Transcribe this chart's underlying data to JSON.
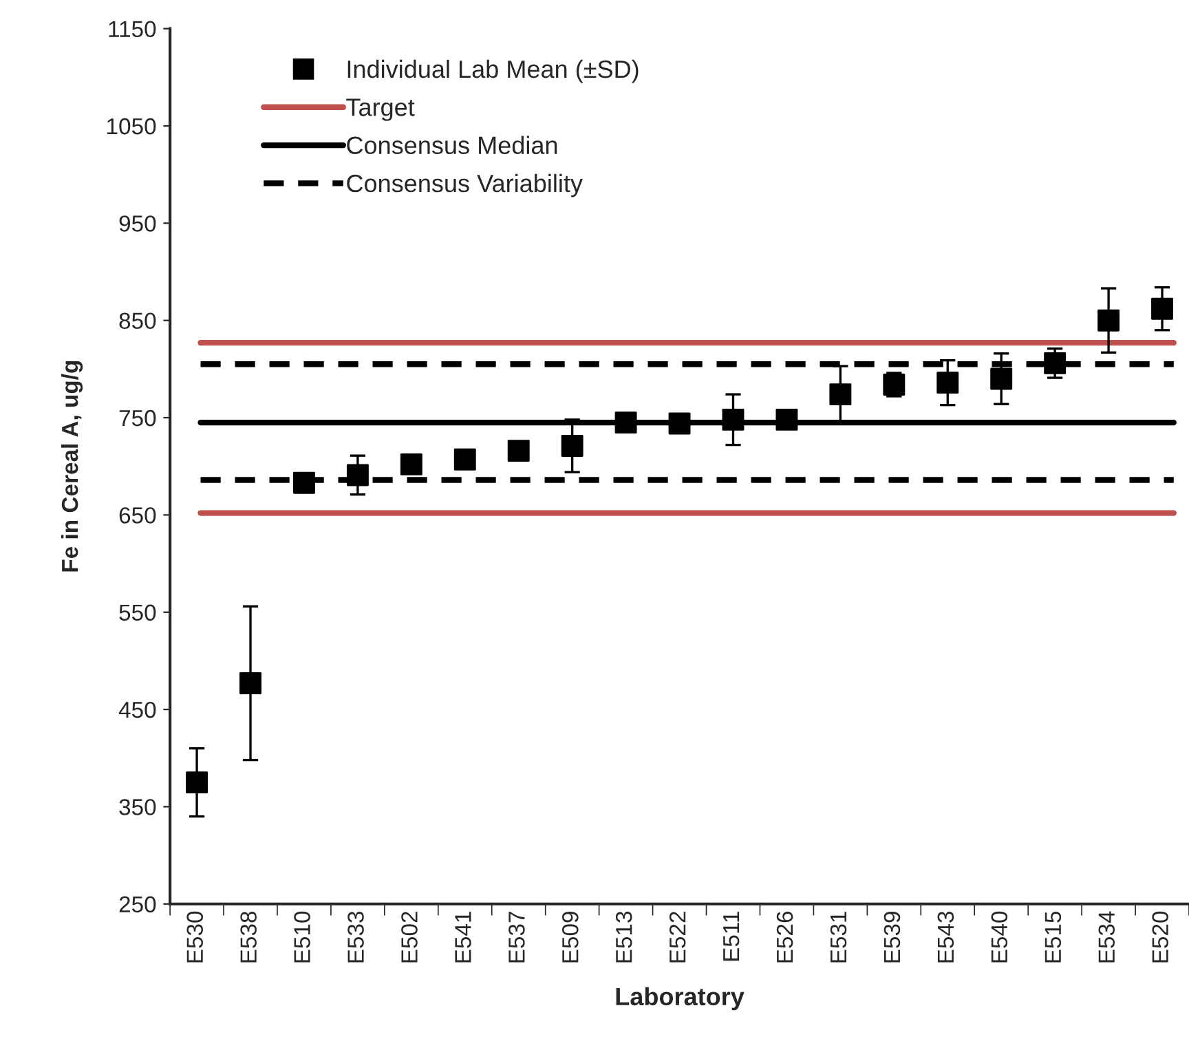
{
  "chart_data": {
    "type": "scatter",
    "xlabel": "Laboratory",
    "ylabel": "Fe in Cereal A, ug/g",
    "categories": [
      "E530",
      "E538",
      "E510",
      "E533",
      "E502",
      "E541",
      "E537",
      "E509",
      "E513",
      "E522",
      "E511",
      "E526",
      "E531",
      "E539",
      "E543",
      "E540",
      "E515",
      "E534",
      "E520"
    ],
    "series": [
      {
        "name": "Individual Lab Mean (±SD)",
        "color": "#000000",
        "values": [
          375,
          477,
          683,
          691,
          702,
          707,
          716,
          721,
          745,
          744,
          748,
          748,
          774,
          784,
          786,
          790,
          806,
          850,
          862
        ],
        "errors": [
          35,
          79,
          null,
          20,
          null,
          null,
          null,
          27,
          null,
          null,
          26,
          null,
          29,
          12,
          23,
          26,
          15,
          33,
          22
        ]
      }
    ],
    "marker": "square",
    "ref_lines": [
      {
        "axis": "y",
        "value": 827,
        "label": "Target",
        "color": "#c0504d",
        "line_style": "solid"
      },
      {
        "axis": "y",
        "value": 652,
        "label": null,
        "color": "#c0504d",
        "line_style": "solid"
      },
      {
        "axis": "y",
        "value": 745,
        "label": "Consensus Median",
        "color": "#000000",
        "line_style": "solid"
      },
      {
        "axis": "y",
        "value": 805,
        "label": "Consensus Variability",
        "color": "#000000",
        "line_style": "dashed"
      },
      {
        "axis": "y",
        "value": 686,
        "label": null,
        "color": "#000000",
        "line_style": "dashed"
      }
    ],
    "ylim": [
      250,
      1150
    ],
    "yticks": [
      250,
      350,
      450,
      550,
      650,
      750,
      850,
      950,
      1050,
      1150
    ],
    "grid": false,
    "legend": "top left"
  }
}
